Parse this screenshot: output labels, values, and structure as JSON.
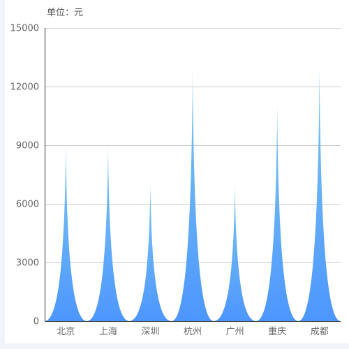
{
  "chart_data": {
    "type": "bar",
    "bar_style": "pictorial-spike",
    "unit_label": "单位：元",
    "categories": [
      "北京",
      "上海",
      "深圳",
      "杭州",
      "广州",
      "重庆",
      "成都"
    ],
    "values": [
      9000,
      9000,
      7000,
      12800,
      7000,
      11000,
      13000
    ],
    "ylim": [
      0,
      15000
    ],
    "yticks": [
      0,
      3000,
      6000,
      9000,
      12000,
      15000
    ],
    "grid": true,
    "legend": "none",
    "colors": {
      "spike_top": "#7ec8f0",
      "spike_bottom": "#4d96ff",
      "grid": "#cccccc",
      "axis": "#333333",
      "text": "#666666"
    }
  }
}
